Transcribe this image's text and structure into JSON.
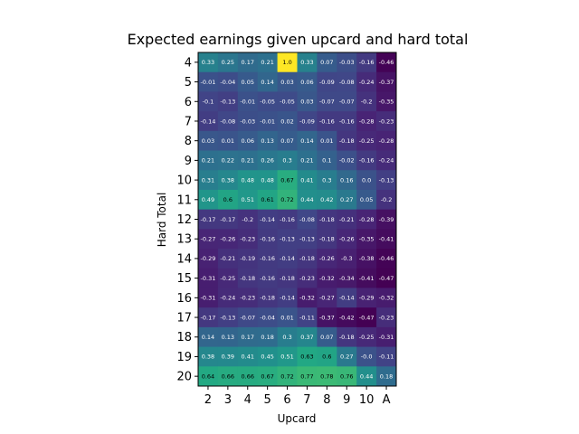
{
  "chart_data": {
    "type": "heatmap",
    "title": "Expected earnings given upcard and hard total",
    "xlabel": "Upcard",
    "ylabel": "Hard Total",
    "x_categories": [
      "2",
      "3",
      "4",
      "5",
      "6",
      "7",
      "8",
      "9",
      "10",
      "A"
    ],
    "y_categories": [
      "4",
      "5",
      "6",
      "7",
      "8",
      "9",
      "10",
      "11",
      "12",
      "13",
      "14",
      "15",
      "16",
      "17",
      "18",
      "19",
      "20"
    ],
    "value_labels": [
      [
        "0.33",
        "0.25",
        "0.17",
        "0.21",
        "1.0",
        "0.33",
        "0.07",
        "-0.03",
        "-0.16",
        "-0.46"
      ],
      [
        "-0.01",
        "-0.04",
        "0.05",
        "0.14",
        "0.03",
        "0.06",
        "-0.09",
        "-0.08",
        "-0.24",
        "-0.37"
      ],
      [
        "-0.1",
        "-0.13",
        "-0.01",
        "-0.05",
        "-0.05",
        "0.03",
        "-0.07",
        "-0.07",
        "-0.2",
        "-0.35"
      ],
      [
        "-0.14",
        "-0.08",
        "-0.03",
        "-0.01",
        "0.02",
        "-0.09",
        "-0.16",
        "-0.16",
        "-0.28",
        "-0.23"
      ],
      [
        "0.03",
        "0.01",
        "0.06",
        "0.13",
        "0.07",
        "0.14",
        "0.01",
        "-0.18",
        "-0.25",
        "-0.28"
      ],
      [
        "0.21",
        "0.22",
        "0.21",
        "0.26",
        "0.3",
        "0.21",
        "0.1",
        "-0.02",
        "-0.16",
        "-0.24"
      ],
      [
        "0.31",
        "0.38",
        "0.48",
        "0.48",
        "0.67",
        "0.41",
        "0.3",
        "0.16",
        "0.0",
        "-0.13"
      ],
      [
        "0.49",
        "0.6",
        "0.51",
        "0.61",
        "0.72",
        "0.44",
        "0.42",
        "0.27",
        "0.05",
        "-0.2"
      ],
      [
        "-0.17",
        "-0.17",
        "-0.2",
        "-0.14",
        "-0.16",
        "-0.08",
        "-0.18",
        "-0.21",
        "-0.28",
        "-0.39"
      ],
      [
        "-0.27",
        "-0.26",
        "-0.23",
        "-0.16",
        "-0.13",
        "-0.13",
        "-0.18",
        "-0.26",
        "-0.35",
        "-0.41"
      ],
      [
        "-0.29",
        "-0.21",
        "-0.19",
        "-0.16",
        "-0.14",
        "-0.18",
        "-0.26",
        "-0.3",
        "-0.38",
        "-0.46"
      ],
      [
        "-0.31",
        "-0.25",
        "-0.18",
        "-0.16",
        "-0.18",
        "-0.23",
        "-0.32",
        "-0.34",
        "-0.41",
        "-0.47"
      ],
      [
        "-0.31",
        "-0.24",
        "-0.23",
        "-0.18",
        "-0.14",
        "-0.32",
        "-0.27",
        "-0.14",
        "-0.29",
        "-0.32"
      ],
      [
        "-0.17",
        "-0.13",
        "-0.07",
        "-0.04",
        "0.01",
        "-0.11",
        "-0.37",
        "-0.42",
        "-0.47",
        "-0.23"
      ],
      [
        "0.14",
        "0.13",
        "0.17",
        "0.18",
        "0.3",
        "0.37",
        "0.07",
        "-0.18",
        "-0.25",
        "-0.31"
      ],
      [
        "0.38",
        "0.39",
        "0.41",
        "0.45",
        "0.51",
        "0.63",
        "0.6",
        "0.27",
        "-0.0",
        "-0.11"
      ],
      [
        "0.64",
        "0.66",
        "0.66",
        "0.67",
        "0.72",
        "0.77",
        "0.78",
        "0.76",
        "0.44",
        "0.18"
      ]
    ],
    "color_range": [
      -0.47,
      1.0
    ],
    "colormap": "viridis",
    "grid": false
  }
}
